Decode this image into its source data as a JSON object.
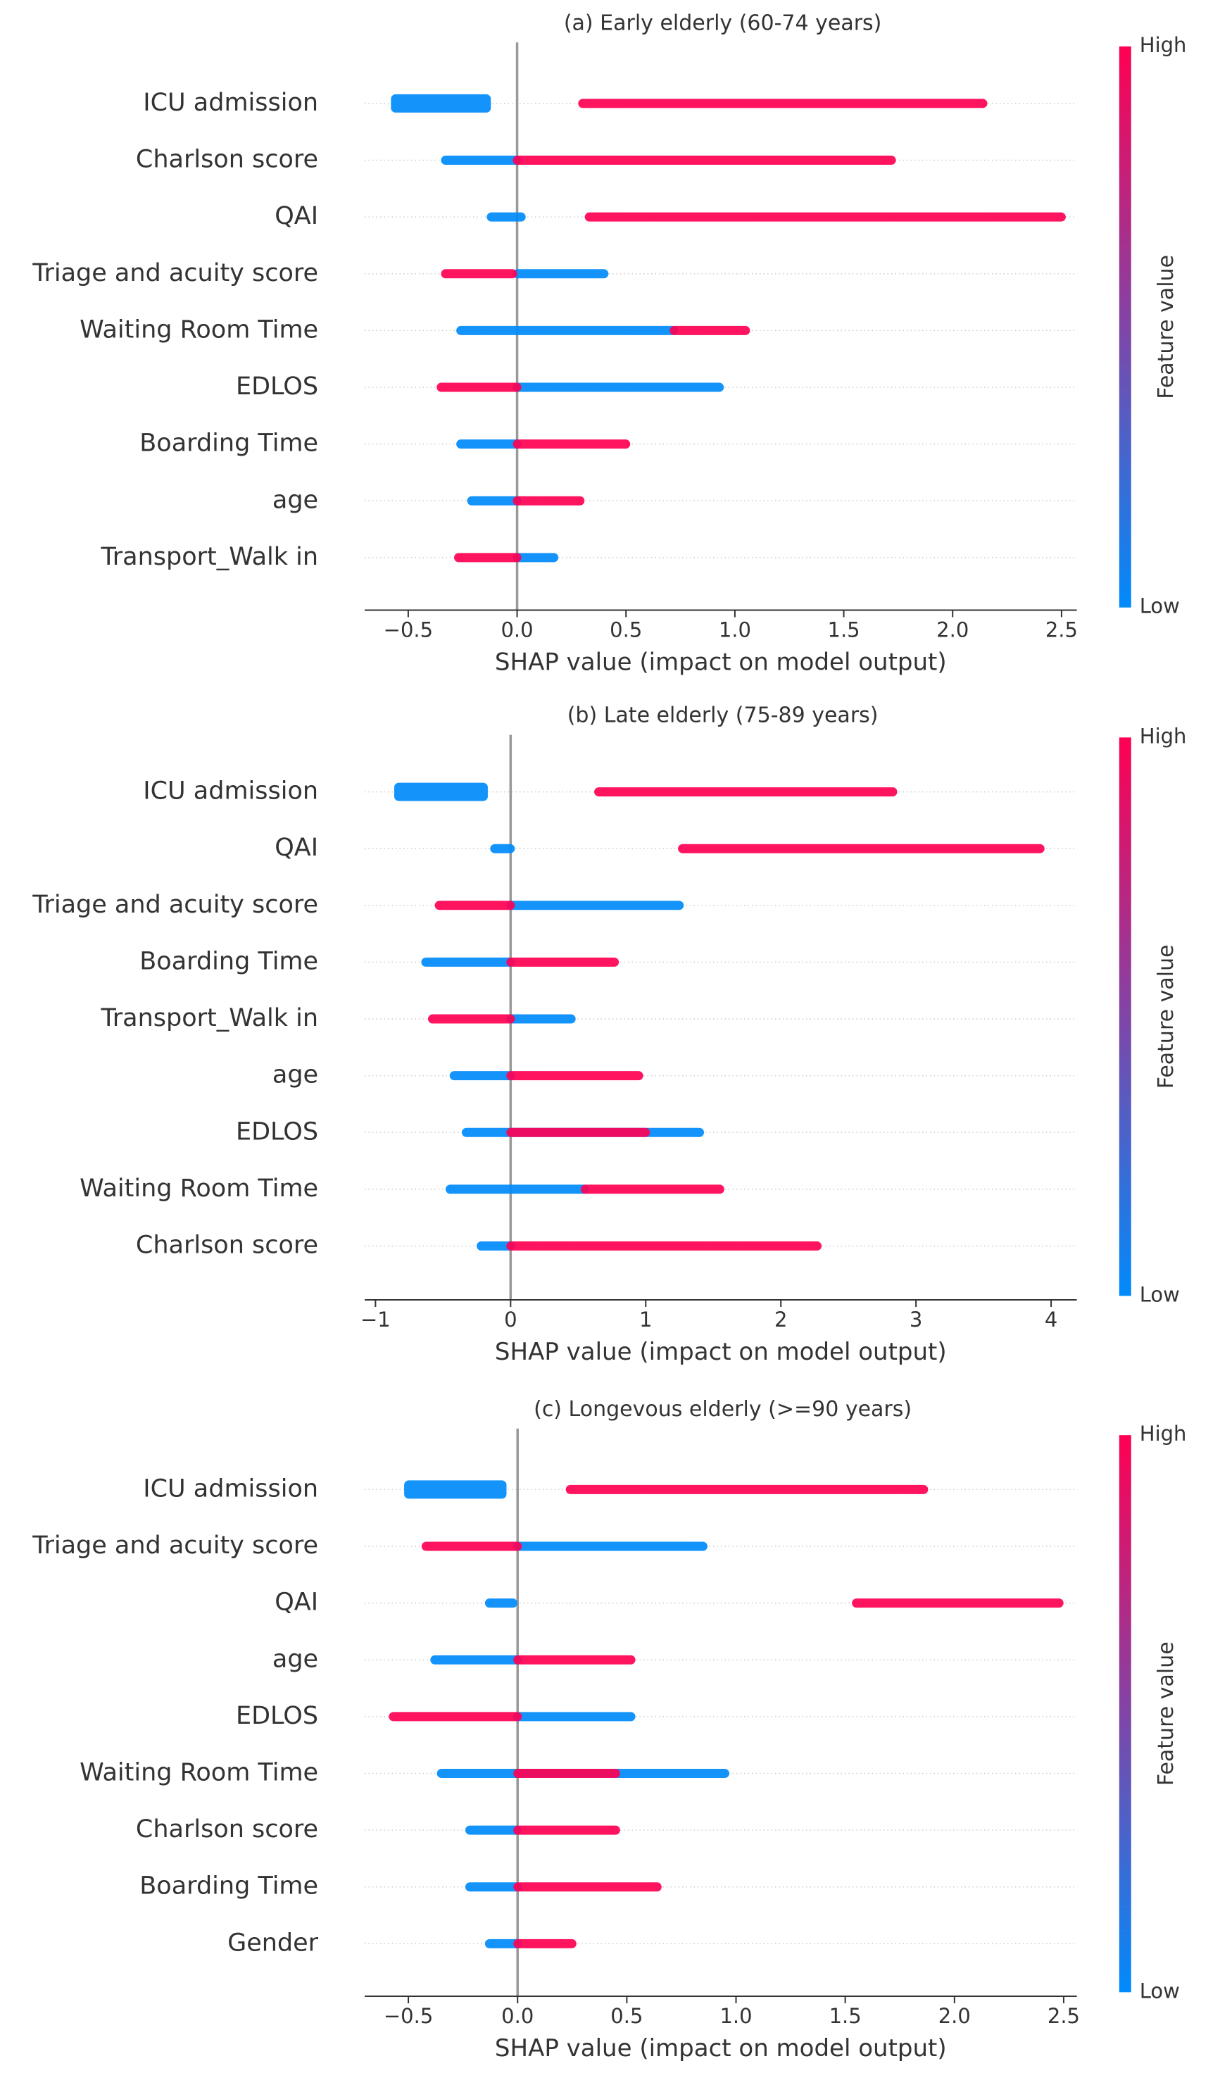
{
  "chart_data": [
    {
      "type": "shap_summary",
      "title": "(a) Early elderly (60-74 years)",
      "xlabel": "SHAP value (impact on model output)",
      "categories": [
        "ICU admission",
        "Charlson score",
        "QAI",
        "Triage and acuity score",
        "Waiting Room Time",
        "EDLOS",
        "Boarding Time",
        "age",
        "Transport_Walk in"
      ],
      "series": [
        {
          "name": "Low",
          "color": "#008bfb",
          "values": [
            [
              -0.56,
              -0.14
            ],
            [
              -0.33,
              0.0
            ],
            [
              -0.12,
              0.02
            ],
            [
              0.0,
              0.4
            ],
            [
              -0.26,
              0.72
            ],
            [
              0.0,
              0.93
            ],
            [
              -0.26,
              0.0
            ],
            [
              -0.21,
              0.0
            ],
            [
              0.0,
              0.17
            ]
          ]
        },
        {
          "name": "High",
          "color": "#ff0052",
          "values": [
            [
              0.3,
              2.14
            ],
            [
              0.0,
              1.72
            ],
            [
              0.33,
              2.5
            ],
            [
              -0.33,
              -0.02
            ],
            [
              0.72,
              1.05
            ],
            [
              -0.35,
              0.0
            ],
            [
              0.0,
              0.5
            ],
            [
              0.0,
              0.29
            ],
            [
              -0.27,
              0.0
            ]
          ]
        }
      ],
      "vline": 0,
      "xlim": [
        -0.7,
        2.57
      ],
      "xticks": [
        {
          "value": -0.5,
          "label": "−0.5"
        },
        {
          "value": 0,
          "label": "0.0"
        },
        0.5,
        {
          "value": 1,
          "label": "1.0"
        },
        1.5,
        {
          "value": 2,
          "label": "2.0"
        },
        2.5
      ],
      "colorbar": {
        "high": "High",
        "low": "Low",
        "label": "Feature value"
      }
    },
    {
      "type": "shap_summary",
      "title": "(b) Late elderly (75-89 years)",
      "xlabel": "SHAP value (impact on model output)",
      "categories": [
        "ICU admission",
        "QAI",
        "Triage and acuity score",
        "Boarding Time",
        "Transport_Walk in",
        "age",
        "EDLOS",
        "Waiting Room Time",
        "Charlson score"
      ],
      "series": [
        {
          "name": "Low",
          "color": "#008bfb",
          "values": [
            [
              -0.83,
              -0.2
            ],
            [
              -0.12,
              0.0
            ],
            [
              0.0,
              1.25
            ],
            [
              -0.63,
              0.0
            ],
            [
              0.0,
              0.45
            ],
            [
              -0.42,
              0.0
            ],
            [
              -0.33,
              1.4
            ],
            [
              -0.45,
              0.55
            ],
            [
              -0.22,
              0.0
            ]
          ]
        },
        {
          "name": "High",
          "color": "#ff0052",
          "values": [
            [
              0.65,
              2.83
            ],
            [
              1.27,
              3.92
            ],
            [
              -0.53,
              0.0
            ],
            [
              0.0,
              0.77
            ],
            [
              -0.58,
              0.0
            ],
            [
              0.0,
              0.95
            ],
            [
              0.0,
              1.0
            ],
            [
              0.55,
              1.55
            ],
            [
              0.0,
              2.27
            ]
          ]
        }
      ],
      "vline": 0,
      "xlim": [
        -1.08,
        4.19
      ],
      "xticks": [
        {
          "value": -1,
          "label": "−1"
        },
        0,
        1,
        2,
        3,
        4
      ],
      "colorbar": {
        "high": "High",
        "low": "Low",
        "label": "Feature value"
      }
    },
    {
      "type": "shap_summary",
      "title": "(c) Longevous elderly (>=90 years)",
      "xlabel": "SHAP value (impact on model output)",
      "categories": [
        "ICU admission",
        "Triage and acuity score",
        "QAI",
        "age",
        "EDLOS",
        "Waiting Room Time",
        "Charlson score",
        "Boarding Time",
        "Gender"
      ],
      "series": [
        {
          "name": "Low",
          "color": "#008bfb",
          "values": [
            [
              -0.5,
              -0.07
            ],
            [
              0.0,
              0.85
            ],
            [
              -0.13,
              -0.02
            ],
            [
              -0.38,
              0.0
            ],
            [
              0.0,
              0.52
            ],
            [
              -0.35,
              0.95
            ],
            [
              -0.22,
              0.0
            ],
            [
              -0.22,
              0.0
            ],
            [
              -0.13,
              0.0
            ]
          ]
        },
        {
          "name": "High",
          "color": "#ff0052",
          "values": [
            [
              0.24,
              1.86
            ],
            [
              -0.42,
              0.0
            ],
            [
              1.55,
              2.48
            ],
            [
              0.0,
              0.52
            ],
            [
              -0.57,
              0.0
            ],
            [
              0.0,
              0.45
            ],
            [
              0.0,
              0.45
            ],
            [
              0.0,
              0.64
            ],
            [
              0.0,
              0.25
            ]
          ]
        }
      ],
      "vline": 0,
      "xlim": [
        -0.7,
        2.56
      ],
      "xticks": [
        {
          "value": -0.5,
          "label": "−0.5"
        },
        {
          "value": 0,
          "label": "0.0"
        },
        0.5,
        {
          "value": 1,
          "label": "1.0"
        },
        1.5,
        {
          "value": 2,
          "label": "2.0"
        },
        2.5
      ],
      "colorbar": {
        "high": "High",
        "low": "Low",
        "label": "Feature value"
      }
    }
  ]
}
